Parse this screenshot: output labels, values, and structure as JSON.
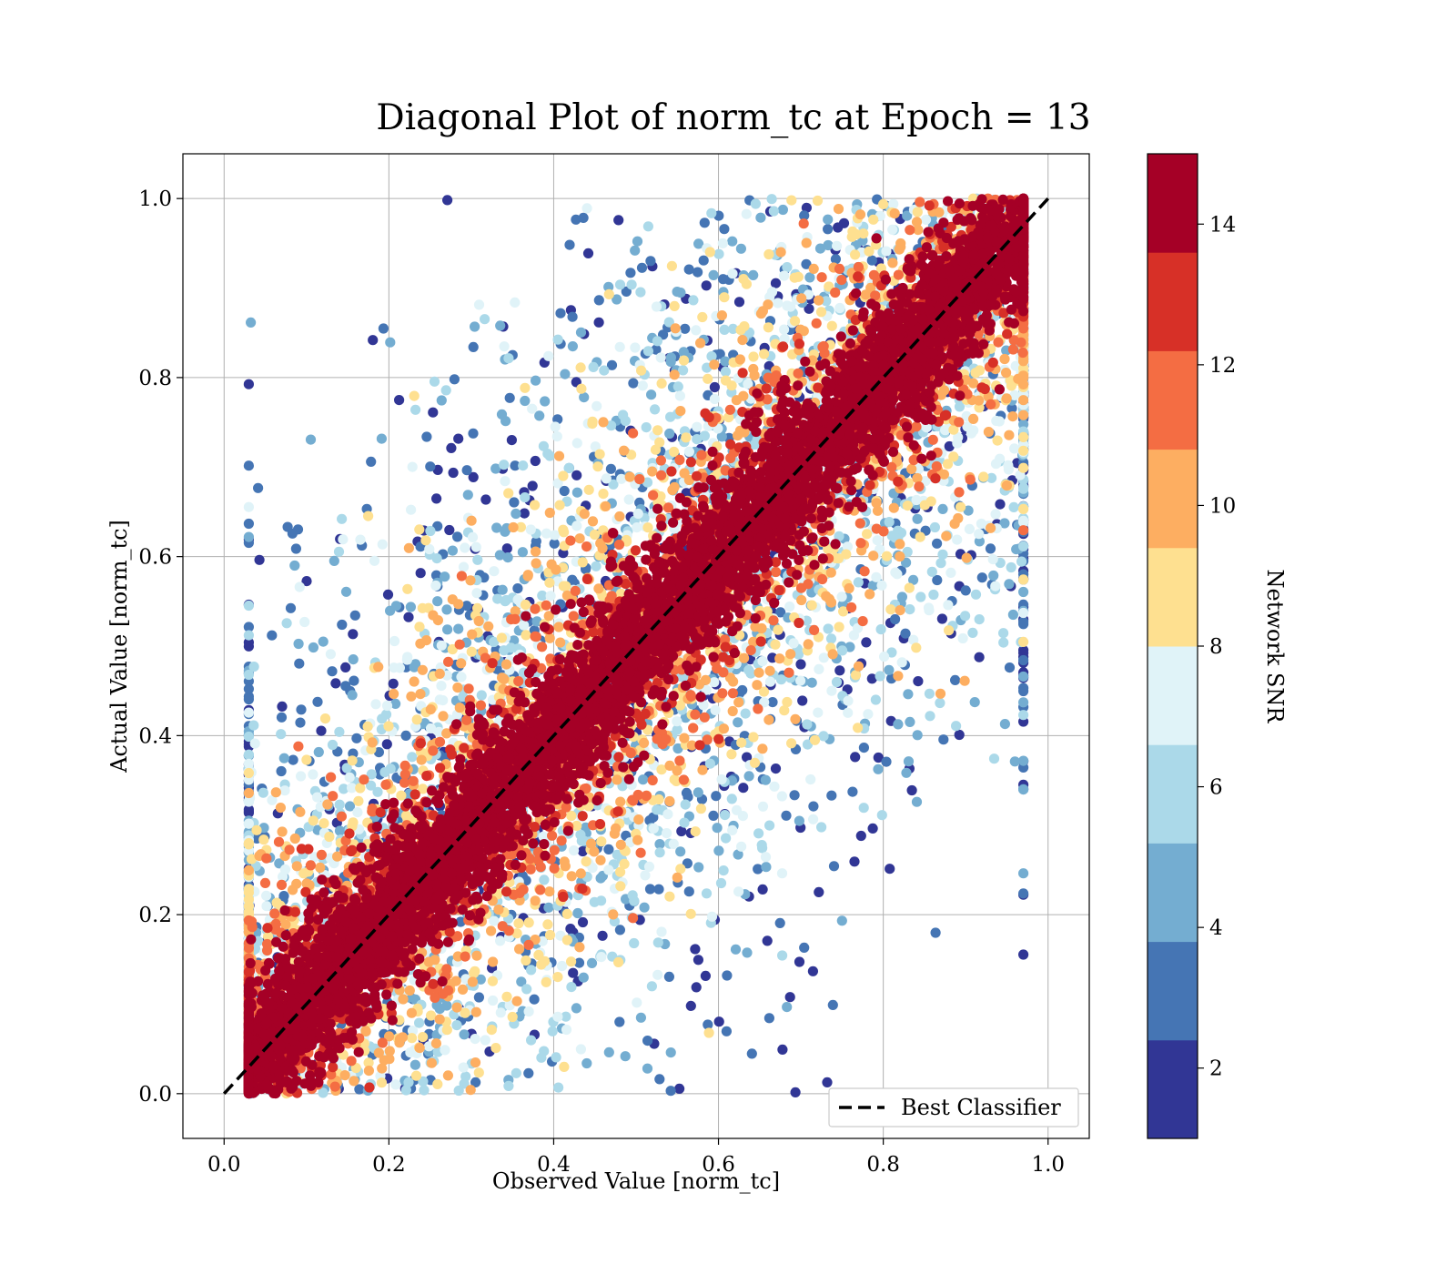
{
  "chart_data": {
    "type": "scatter",
    "title": "Diagonal Plot of norm_tc at Epoch = 13",
    "xlabel": "Observed Value [norm_tc]",
    "ylabel": "Actual Value [norm_tc]",
    "xlim": [
      -0.05,
      1.05
    ],
    "ylim": [
      -0.05,
      1.05
    ],
    "x_ticks": [
      0.0,
      0.2,
      0.4,
      0.6,
      0.8,
      1.0
    ],
    "x_tick_labels": [
      "0.0",
      "0.2",
      "0.4",
      "0.6",
      "0.8",
      "1.0"
    ],
    "y_ticks": [
      0.0,
      0.2,
      0.4,
      0.6,
      0.8,
      1.0
    ],
    "y_tick_labels": [
      "0.0",
      "0.2",
      "0.4",
      "0.6",
      "0.8",
      "1.0"
    ],
    "grid": true,
    "reference_line": {
      "label": "Best Classifier",
      "x": [
        0.0,
        1.0
      ],
      "y": [
        0.0,
        1.0
      ],
      "color": "#000000",
      "style": "dashed"
    },
    "legend_position": "lower-right",
    "colorbar": {
      "label": "Network SNR",
      "range": [
        1,
        15
      ],
      "ticks": [
        2,
        4,
        6,
        8,
        10,
        12,
        14
      ],
      "tick_labels": [
        "2",
        "4",
        "6",
        "8",
        "10",
        "12",
        "14"
      ],
      "colors": [
        "#313695",
        "#4575b4",
        "#74add1",
        "#abd9e9",
        "#e0f3f8",
        "#fee090",
        "#fdae61",
        "#f46d43",
        "#d73027",
        "#a50026"
      ]
    },
    "scatter_description": {
      "marker": "circle",
      "dominant_color": "#a50026",
      "pattern": "points concentrated along the diagonal with high SNR; spread increases and SNR decreases away from the diagonal"
    }
  }
}
